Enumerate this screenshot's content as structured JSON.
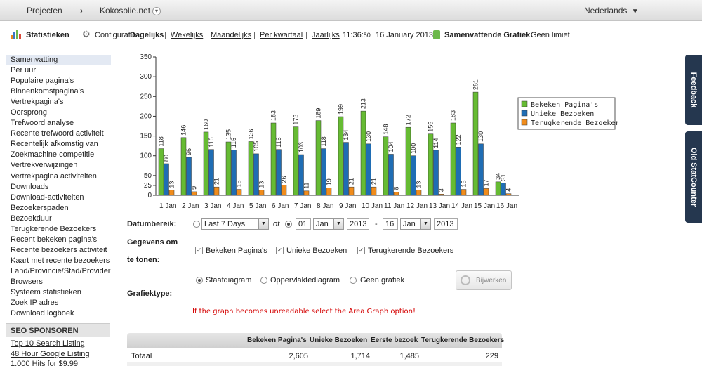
{
  "topbar": {
    "projects": "Projecten",
    "chevron": "›",
    "project_name": "Kokosolie.net",
    "project_dropdown": "▾",
    "language": "Nederlands",
    "language_arrow": "▼"
  },
  "subbar": {
    "statistics": "Statistieken",
    "separator": "|",
    "configuration": "Configuratie",
    "daily": "Dagelijks",
    "weekly": "Wekelijks",
    "monthly": "Maandelijks",
    "quarterly": "Per kwartaal",
    "yearly": "Jaarlijks",
    "time": "11:36:",
    "time_seconds": "50",
    "date": "16 January 2013",
    "summary_graph_label": "Samenvattende Grafiek:",
    "summary_graph_value": "Geen limiet"
  },
  "sidebar": {
    "items": [
      "Samenvatting",
      "Per uur",
      "Populaire pagina's",
      "Binnenkomstpagina's",
      "Vertrekpagina's",
      "Oorsprong",
      "Trefwoord analyse",
      "Recente trefwoord activiteit",
      "Recentelijk afkomstig van",
      "Zoekmachine competitie",
      "Vertrekverwijzingen",
      "Vertrekpagina activiteiten",
      "Downloads",
      "Download-activiteiten",
      "Bezoekerspaden",
      "Bezoekduur",
      "Terugkerende Bezoekers",
      "Recent bekeken pagina's",
      "Recente bezoekers activiteit",
      "Kaart met recente bezoekers",
      "Land/Provincie/Stad/Provider",
      "Browsers",
      "Systeem statistieken",
      "Zoek IP adres",
      "Download logboek"
    ],
    "sponsor_heading": "SEO SPONSOREN",
    "sponsor_links": [
      "Top 10 Search Listing",
      "48 Hour Google Listing",
      "1,000 Hits for $9.99"
    ]
  },
  "right_tabs": {
    "feedback": "Feedback",
    "old": "Old StatCounter"
  },
  "chart_data": {
    "type": "bar",
    "categories": [
      "1 Jan",
      "2 Jan",
      "3 Jan",
      "4 Jan",
      "5 Jan",
      "6 Jan",
      "7 Jan",
      "8 Jan",
      "9 Jan",
      "10 Jan",
      "11 Jan",
      "12 Jan",
      "13 Jan",
      "14 Jan",
      "15 Jan",
      "16 Jan"
    ],
    "series": [
      {
        "name": "Bekeken Pagina's",
        "color": "#66bb33",
        "values": [
          118,
          146,
          160,
          135,
          136,
          183,
          173,
          189,
          199,
          213,
          148,
          172,
          155,
          183,
          261,
          34
        ]
      },
      {
        "name": "Unieke Bezoeken",
        "color": "#1f6db4",
        "values": [
          80,
          96,
          116,
          115,
          105,
          116,
          103,
          118,
          134,
          130,
          104,
          100,
          114,
          122,
          130,
          31
        ]
      },
      {
        "name": "Terugkerende Bezoekers",
        "color": "#f08c1c",
        "values": [
          13,
          9,
          21,
          15,
          13,
          26,
          11,
          19,
          21,
          21,
          8,
          13,
          3,
          15,
          17,
          4
        ]
      }
    ],
    "yticks": [
      0,
      25,
      50,
      100,
      150,
      200,
      250,
      300,
      350
    ],
    "ylim": [
      0,
      350
    ],
    "legend_position": "right"
  },
  "form": {
    "date_range_label": "Datumbereik:",
    "range_select": "Last 7 Days",
    "of_label": "of",
    "from_day": "01",
    "from_month": "Jan",
    "from_year": "2013",
    "dash": "-",
    "to_day": "16",
    "to_month": "Jan",
    "to_year": "2013",
    "data_label_1": "Gegevens om",
    "data_label_2": "te tonen:",
    "chk_pages": "Bekeken Pagina's",
    "chk_unique": "Unieke Bezoeken",
    "chk_returning": "Terugkerende Bezoekers",
    "graph_type_label": "Grafiektype:",
    "radio_bar": "Staafdiagram",
    "radio_area": "Oppervlaktediagram",
    "radio_none": "Geen grafiek",
    "update_button": "Bijwerken",
    "warning": "If the graph becomes unreadable select the Area Graph option!"
  },
  "table": {
    "headers": [
      "Bekeken Pagina's",
      "Unieke Bezoeken",
      "Eerste bezoek",
      "Terugkerende Bezoekers"
    ],
    "rows": [
      {
        "label": "Totaal",
        "values": [
          "2,605",
          "1,714",
          "1,485",
          "229"
        ]
      }
    ]
  }
}
